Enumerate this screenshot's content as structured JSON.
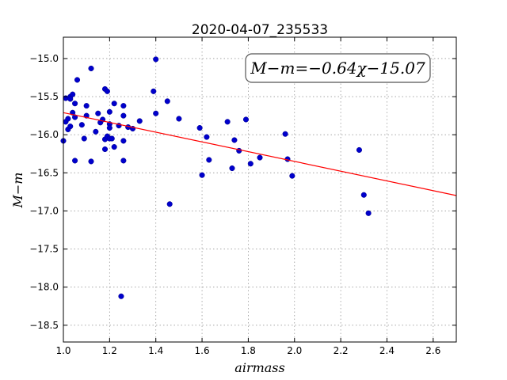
{
  "chart_data": {
    "type": "scatter",
    "title": "2020-04-07_235533",
    "xlabel": "airmass",
    "ylabel": "M−m",
    "annotation": "M−m=−0.64χ−15.07",
    "xlim": [
      1.0,
      2.7
    ],
    "ylim": [
      -18.72,
      -14.72
    ],
    "y_inverted": true,
    "grid": true,
    "xticks": [
      1.0,
      1.2,
      1.4,
      1.6,
      1.8,
      2.0,
      2.2,
      2.4,
      2.6
    ],
    "xtick_labels": [
      "1.0",
      "1.2",
      "1.4",
      "1.6",
      "1.8",
      "2.0",
      "2.2",
      "2.4",
      "2.6"
    ],
    "yticks": [
      -15.0,
      -15.5,
      -16.0,
      -16.5,
      -17.0,
      -17.5,
      -18.0,
      -18.5
    ],
    "ytick_labels": [
      "−15.0",
      "−15.5",
      "−16.0",
      "−16.5",
      "−17.0",
      "−17.5",
      "−18.0",
      "−18.5"
    ],
    "fit_line": {
      "slope": -0.64,
      "intercept": -15.07,
      "color": "#ff0000"
    },
    "marker_color": "#0000cc",
    "points": [
      [
        1.0,
        -16.08
      ],
      [
        1.01,
        -15.52
      ],
      [
        1.01,
        -15.83
      ],
      [
        1.02,
        -15.79
      ],
      [
        1.02,
        -15.93
      ],
      [
        1.03,
        -15.5
      ],
      [
        1.03,
        -15.53
      ],
      [
        1.03,
        -15.89
      ],
      [
        1.04,
        -15.47
      ],
      [
        1.04,
        -15.71
      ],
      [
        1.05,
        -16.34
      ],
      [
        1.05,
        -15.77
      ],
      [
        1.05,
        -15.59
      ],
      [
        1.06,
        -15.28
      ],
      [
        1.08,
        -15.87
      ],
      [
        1.09,
        -16.05
      ],
      [
        1.1,
        -15.62
      ],
      [
        1.1,
        -15.75
      ],
      [
        1.12,
        -15.13
      ],
      [
        1.12,
        -16.35
      ],
      [
        1.14,
        -15.96
      ],
      [
        1.15,
        -15.72
      ],
      [
        1.16,
        -15.84
      ],
      [
        1.17,
        -15.8
      ],
      [
        1.18,
        -15.4
      ],
      [
        1.18,
        -16.06
      ],
      [
        1.18,
        -16.19
      ],
      [
        1.19,
        -15.43
      ],
      [
        1.19,
        -16.02
      ],
      [
        1.2,
        -15.7
      ],
      [
        1.2,
        -15.86
      ],
      [
        1.2,
        -15.91
      ],
      [
        1.2,
        -16.05
      ],
      [
        1.21,
        -16.05
      ],
      [
        1.22,
        -15.59
      ],
      [
        1.22,
        -16.16
      ],
      [
        1.24,
        -15.88
      ],
      [
        1.25,
        -18.12
      ],
      [
        1.26,
        -15.62
      ],
      [
        1.26,
        -15.75
      ],
      [
        1.26,
        -16.08
      ],
      [
        1.26,
        -16.34
      ],
      [
        1.28,
        -15.9
      ],
      [
        1.3,
        -15.92
      ],
      [
        1.33,
        -15.82
      ],
      [
        1.39,
        -15.43
      ],
      [
        1.4,
        -15.01
      ],
      [
        1.4,
        -15.72
      ],
      [
        1.45,
        -15.56
      ],
      [
        1.46,
        -16.91
      ],
      [
        1.5,
        -15.79
      ],
      [
        1.59,
        -15.91
      ],
      [
        1.6,
        -16.53
      ],
      [
        1.62,
        -16.03
      ],
      [
        1.63,
        -16.33
      ],
      [
        1.71,
        -15.83
      ],
      [
        1.73,
        -16.44
      ],
      [
        1.74,
        -16.07
      ],
      [
        1.76,
        -16.21
      ],
      [
        1.79,
        -15.8
      ],
      [
        1.81,
        -16.38
      ],
      [
        1.85,
        -16.3
      ],
      [
        1.96,
        -15.99
      ],
      [
        1.97,
        -16.32
      ],
      [
        1.99,
        -16.54
      ],
      [
        2.28,
        -16.2
      ],
      [
        2.3,
        -16.79
      ],
      [
        2.32,
        -17.03
      ]
    ]
  }
}
